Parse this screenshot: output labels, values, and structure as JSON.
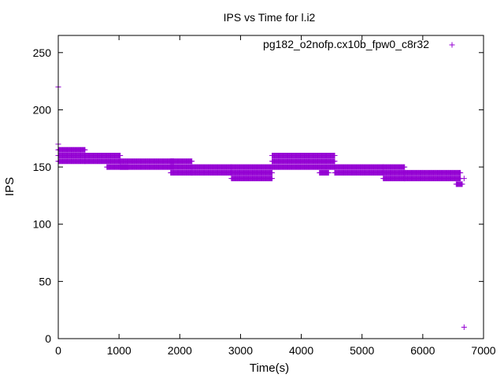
{
  "chart_data": {
    "type": "scatter",
    "title": "IPS vs Time for l.i2",
    "xlabel": "Time(s)",
    "ylabel": "IPS",
    "xlim": [
      0,
      7000
    ],
    "ylim": [
      0,
      265
    ],
    "x_ticks": [
      0,
      1000,
      2000,
      3000,
      4000,
      5000,
      6000,
      7000
    ],
    "y_ticks": [
      0,
      50,
      100,
      150,
      200,
      250
    ],
    "grid": false,
    "legend_position": "top-right",
    "marker": "plus",
    "series": [
      {
        "name": "pg182_o2nofp.cx10b_fpw0_c8r32",
        "color": "#9400d3",
        "segments": [
          {
            "x_start": 0,
            "x_end": 440,
            "y_levels": [
              155,
              160,
              165
            ]
          },
          {
            "x_start": 440,
            "x_end": 1020,
            "y_levels": [
              155,
              160
            ]
          },
          {
            "x_start": 800,
            "x_end": 1150,
            "y_levels": [
              150
            ]
          },
          {
            "x_start": 1020,
            "x_end": 1900,
            "y_levels": [
              150,
              155
            ]
          },
          {
            "x_start": 1850,
            "x_end": 2200,
            "y_levels": [
              145,
              150,
              155
            ]
          },
          {
            "x_start": 2200,
            "x_end": 2850,
            "y_levels": [
              145,
              150
            ]
          },
          {
            "x_start": 2850,
            "x_end": 3520,
            "y_levels": [
              140,
              145,
              150
            ]
          },
          {
            "x_start": 3520,
            "x_end": 4550,
            "y_levels": [
              150,
              155,
              160
            ]
          },
          {
            "x_start": 4300,
            "x_end": 4450,
            "y_levels": [
              145
            ]
          },
          {
            "x_start": 4550,
            "x_end": 5350,
            "y_levels": [
              145,
              150
            ]
          },
          {
            "x_start": 5350,
            "x_end": 5700,
            "y_levels": [
              140,
              145,
              150
            ]
          },
          {
            "x_start": 5700,
            "x_end": 6620,
            "y_levels": [
              140,
              145
            ]
          },
          {
            "x_start": 6550,
            "x_end": 6650,
            "y_levels": [
              135
            ]
          }
        ],
        "points": [
          {
            "x": 0,
            "y": 220
          },
          {
            "x": 0,
            "y": 170
          },
          {
            "x": 6680,
            "y": 140
          },
          {
            "x": 6680,
            "y": 10
          }
        ]
      }
    ]
  }
}
